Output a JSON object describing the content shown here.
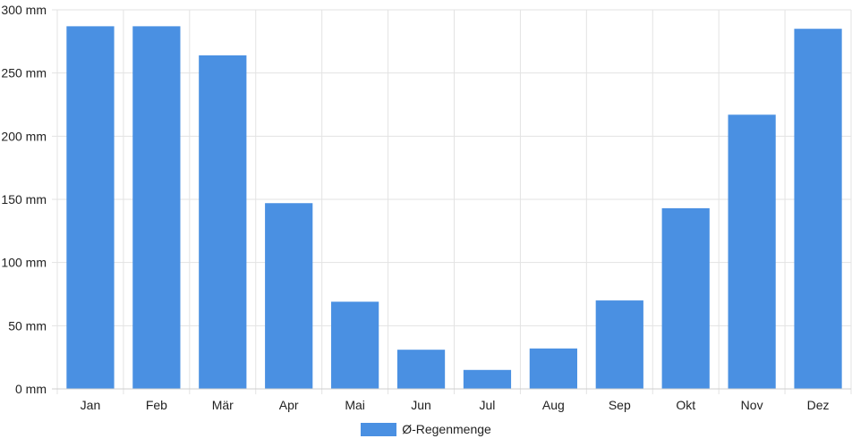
{
  "chart_data": {
    "type": "bar",
    "categories": [
      "Jan",
      "Feb",
      "Mär",
      "Apr",
      "Mai",
      "Jun",
      "Jul",
      "Aug",
      "Sep",
      "Okt",
      "Nov",
      "Dez"
    ],
    "series": [
      {
        "name": "Ø-Regenmenge",
        "values": [
          287,
          287,
          264,
          147,
          69,
          31,
          15,
          32,
          70,
          143,
          217,
          285
        ]
      }
    ],
    "y_ticks": [
      "0 mm",
      "50 mm",
      "100 mm",
      "150 mm",
      "200 mm",
      "250 mm",
      "300 mm"
    ],
    "ylim": [
      0,
      300
    ],
    "grid": true,
    "legend_position": "bottom",
    "bar_color": "#4a90e2",
    "grid_color": "#e3e3e3"
  }
}
